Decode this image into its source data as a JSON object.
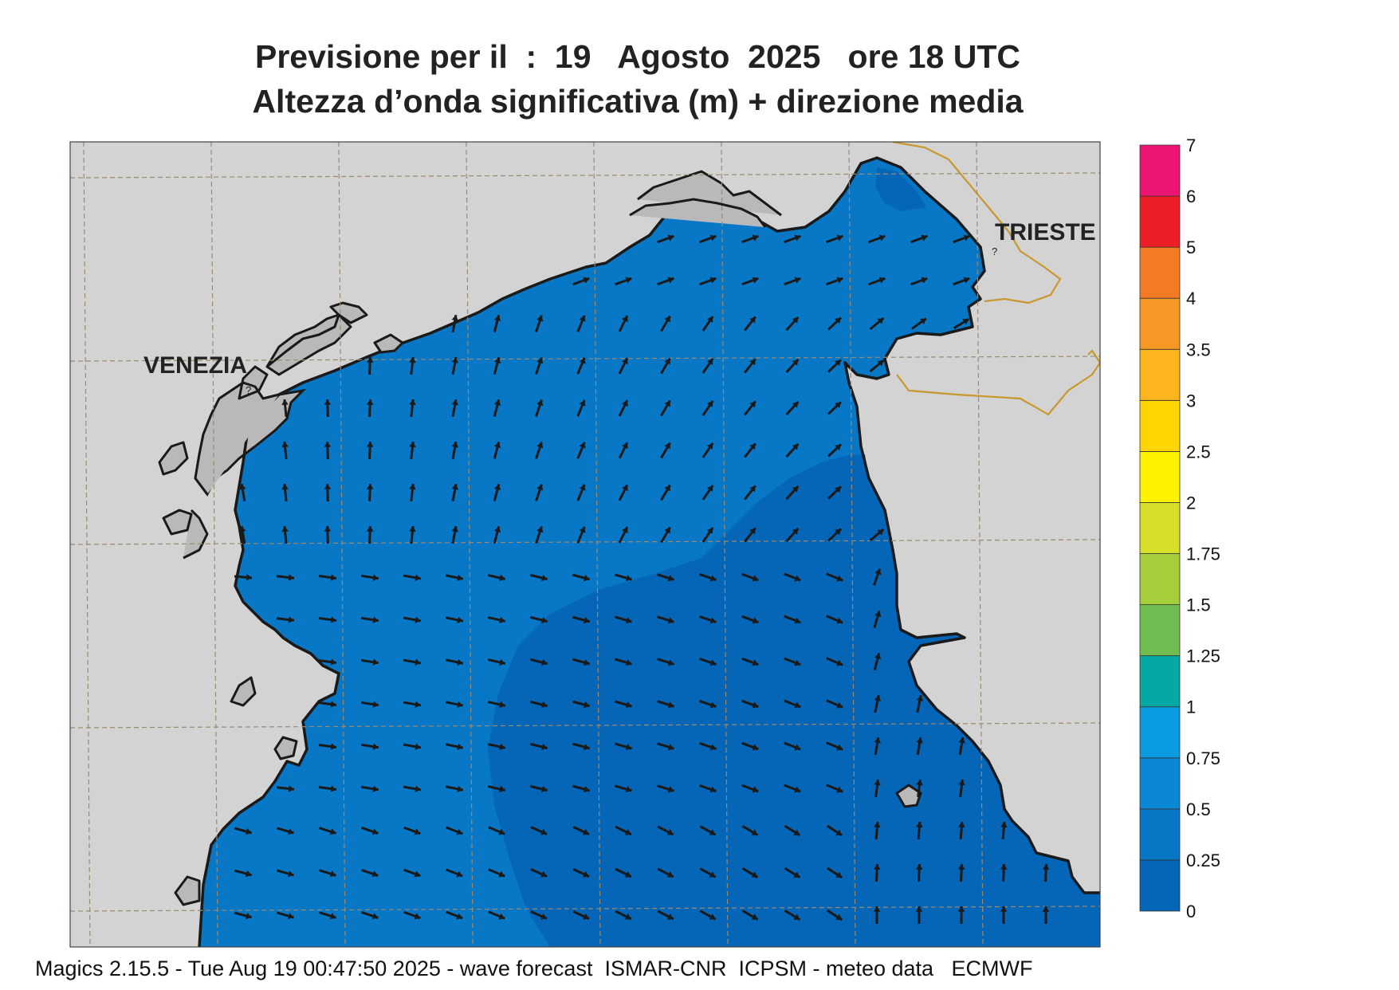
{
  "title": {
    "line1": "Previsione per il  :  19   Agosto  2025   ore 18 UTC",
    "line2": "Altezza d’onda significativa (m) + direzione media"
  },
  "cities": {
    "venezia": "VENEZIA",
    "trieste": "TRIESTE"
  },
  "colorbar": {
    "ticks": [
      "0",
      "0.25",
      "0.5",
      "0.75",
      "1",
      "1.25",
      "1.5",
      "1.75",
      "2",
      "2.5",
      "3",
      "3.5",
      "4",
      "5",
      "6",
      "7"
    ],
    "colors": [
      "#0565b7",
      "#0777c6",
      "#0a88d6",
      "#0b9be0",
      "#05a8a3",
      "#6fbd50",
      "#a6cd3a",
      "#d6df2a",
      "#fff200",
      "#ffd500",
      "#fcb51d",
      "#f79725",
      "#f47b24",
      "#ec1e27",
      "#ec1571"
    ]
  },
  "field": {
    "sea_low": "#0565b7",
    "sea_mid": "#0777c6",
    "land": "#d3d3d4",
    "lagoon": "#b9b9ba",
    "coast": "#1a1a1a",
    "border": "#c9982d",
    "grid": "#9a8a70",
    "arrow": "#1a1a1a"
  },
  "footer": "Magics 2.15.5 - Tue Aug 19 00:47:50 2025 - wave forecast  ISMAR-CNR  ICPSM - meteo data   ECMWF"
}
